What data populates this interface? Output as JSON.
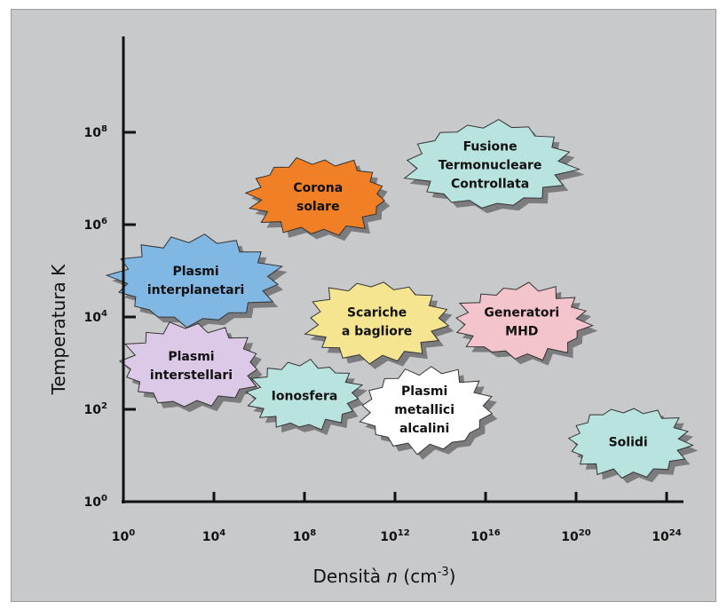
{
  "chart_data": {
    "type": "scatter",
    "x_axis": {
      "label_prefix": "Densità",
      "label_var": "n",
      "label_unit": "(cm",
      "label_exp": "-3",
      "label_close": ")",
      "scale": "log",
      "range_exp": [
        0,
        24
      ],
      "ticks": [
        {
          "base": "10",
          "exp": "0",
          "value_exp": 0
        },
        {
          "base": "10",
          "exp": "4",
          "value_exp": 4
        },
        {
          "base": "10",
          "exp": "8",
          "value_exp": 8
        },
        {
          "base": "10",
          "exp": "12",
          "value_exp": 12
        },
        {
          "base": "10",
          "exp": "16",
          "value_exp": 16
        },
        {
          "base": "10",
          "exp": "20",
          "value_exp": 20
        },
        {
          "base": "10",
          "exp": "24",
          "value_exp": 24
        }
      ]
    },
    "y_axis": {
      "label": "Temperatura K",
      "scale": "log",
      "range_exp": [
        0,
        10
      ],
      "ticks": [
        {
          "base": "10",
          "exp": "0",
          "value_exp": 0
        },
        {
          "base": "10",
          "exp": "2",
          "value_exp": 2
        },
        {
          "base": "10",
          "exp": "4",
          "value_exp": 4
        },
        {
          "base": "10",
          "exp": "6",
          "value_exp": 6
        },
        {
          "base": "10",
          "exp": "8",
          "value_exp": 8
        }
      ]
    },
    "regions": [
      {
        "id": "fusione",
        "lines": [
          "Fusione",
          "Termonucleare",
          "Controllata"
        ],
        "x_exp": 16.2,
        "y_exp": 7.3,
        "color": "#b9e3df"
      },
      {
        "id": "corona",
        "lines": [
          "Corona",
          "solare"
        ],
        "x_exp": 8.6,
        "y_exp": 6.6,
        "color": "#f07f25"
      },
      {
        "id": "interplanetari",
        "lines": [
          "Plasmi",
          "interplanetari"
        ],
        "x_exp": 3.2,
        "y_exp": 4.8,
        "color": "#80b7e3"
      },
      {
        "id": "scariche",
        "lines": [
          "Scariche",
          "a bagliore"
        ],
        "x_exp": 11.2,
        "y_exp": 3.9,
        "color": "#f6e590"
      },
      {
        "id": "generatori",
        "lines": [
          "Generatori",
          "MHD"
        ],
        "x_exp": 17.6,
        "y_exp": 3.9,
        "color": "#f3c4cc"
      },
      {
        "id": "interstellari",
        "lines": [
          "Plasmi",
          "interstellari"
        ],
        "x_exp": 3.0,
        "y_exp": 2.95,
        "color": "#dcc9e8"
      },
      {
        "id": "ionosfera",
        "lines": [
          "Ionosfera"
        ],
        "x_exp": 8.0,
        "y_exp": 2.3,
        "color": "#b9e3df"
      },
      {
        "id": "metallici",
        "lines": [
          "Plasmi",
          "metallici",
          "alcalini"
        ],
        "x_exp": 13.3,
        "y_exp": 2.0,
        "color": "#ffffff"
      },
      {
        "id": "solidi",
        "lines": [
          "Solidi"
        ],
        "x_exp": 22.3,
        "y_exp": 1.3,
        "color": "#b9e3df"
      }
    ]
  }
}
